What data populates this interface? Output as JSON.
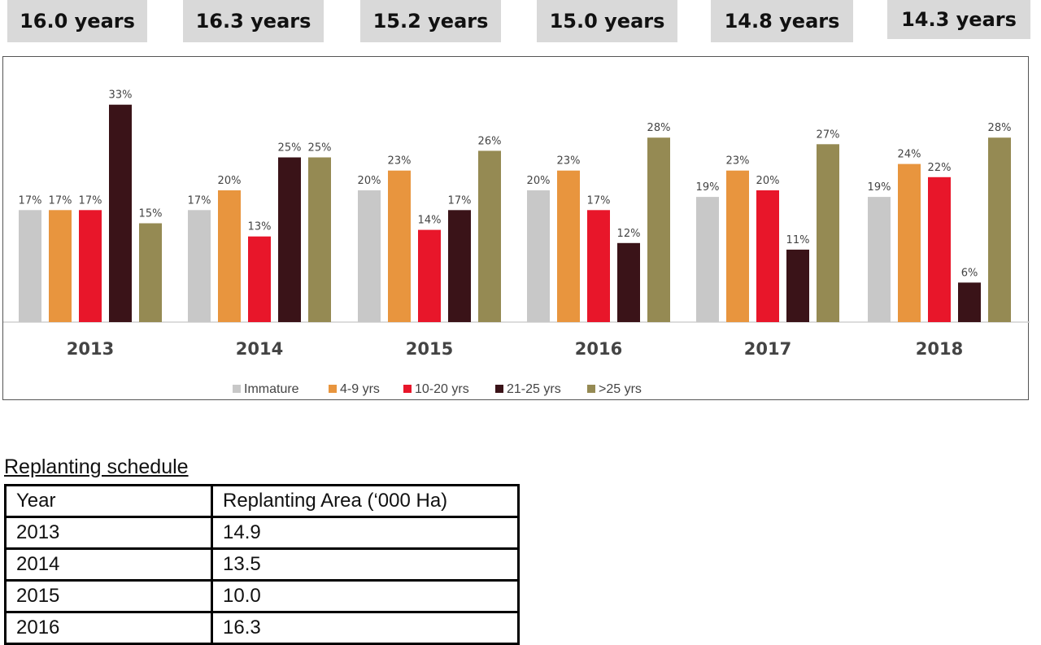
{
  "average_age": [
    "16.0 years",
    "16.3 years",
    "15.2 years",
    "15.0 years",
    "14.8 years",
    "14.3 years"
  ],
  "chart_data": {
    "type": "bar",
    "categories": [
      "2013",
      "2014",
      "2015",
      "2016",
      "2017",
      "2018"
    ],
    "series": [
      {
        "name": "Immature",
        "color": "#c8c8c8",
        "values": [
          17,
          17,
          20,
          20,
          19,
          19
        ]
      },
      {
        "name": "4-9 yrs",
        "color": "#e8953e",
        "values": [
          17,
          20,
          23,
          23,
          23,
          24
        ]
      },
      {
        "name": "10-20 yrs",
        "color": "#e8162a",
        "values": [
          17,
          13,
          14,
          17,
          20,
          22
        ]
      },
      {
        "name": "21-25 yrs",
        "color": "#3a1318",
        "values": [
          33,
          25,
          17,
          12,
          11,
          6
        ]
      },
      {
        "name": ">25 yrs",
        "color": "#958a53",
        "values": [
          15,
          25,
          26,
          28,
          27,
          28
        ]
      }
    ],
    "value_suffix": "%",
    "ylim": [
      0,
      35
    ],
    "grid": false,
    "legend_position": "bottom"
  },
  "schedule": {
    "title": "Replanting schedule",
    "headers": [
      "Year",
      "Replanting Area (‘000 Ha)"
    ],
    "rows": [
      [
        "2013",
        "14.9"
      ],
      [
        "2014",
        "13.5"
      ],
      [
        "2015",
        "10.0"
      ],
      [
        "2016",
        "16.3"
      ]
    ]
  }
}
